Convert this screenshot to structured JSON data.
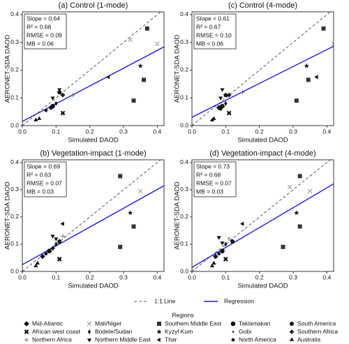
{
  "chart_data": [
    {
      "type": "scatter",
      "title": "(a) Control (1-mode)",
      "x_label": "Simulated DAOD",
      "y_label": "AERONET-SDA DAOD",
      "xlim": [
        0,
        0.42
      ],
      "ylim": [
        0,
        0.41
      ],
      "xticks": [
        {
          "value": 0,
          "label": "0.0"
        },
        {
          "value": 0.1,
          "label": "0.1"
        },
        {
          "value": 0.2,
          "label": "0.2"
        },
        {
          "value": 0.3,
          "label": "0.3"
        },
        {
          "value": 0.4,
          "label": "0.4"
        }
      ],
      "yticks": [
        {
          "value": 0,
          "label": "0.0"
        },
        {
          "value": 0.1,
          "label": "0.1"
        },
        {
          "value": 0.2,
          "label": "0.2"
        },
        {
          "value": 0.3,
          "label": "0.3"
        },
        {
          "value": 0.4,
          "label": "0.4"
        }
      ],
      "stats": [
        {
          "value": 0.64,
          "label": "Slope = 0.64"
        },
        {
          "value": 0.68,
          "label": "R² = 0.68"
        },
        {
          "value": 0.09,
          "label": "RMSE = 0.09"
        },
        {
          "value": 0.06,
          "label": "MB = 0.06"
        }
      ],
      "regression_intercept": 0.015,
      "x": [
        0.32,
        0.4,
        0.37,
        0.36,
        0.33,
        0.35,
        0.255,
        0.11,
        0.09,
        0.12,
        0.04,
        0.05,
        0.07,
        0.09,
        0.085,
        0.1,
        0.12,
        0.15,
        0.11
      ],
      "y": [
        0.31,
        0.295,
        0.35,
        0.165,
        0.09,
        0.215,
        0.175,
        0.13,
        0.1,
        0.045,
        0.02,
        0.025,
        0.055,
        0.07,
        0.065,
        0.08,
        0.11,
        0.11,
        0.12
      ],
      "region": [
        3,
        3,
        6,
        6,
        6,
        7,
        8,
        5,
        5,
        1,
        14,
        14,
        11,
        9,
        0,
        4,
        13,
        2,
        12
      ]
    },
    {
      "type": "scatter",
      "title": "(c) Control (4-mode)",
      "x_label": "Simulated DAOD",
      "y_label": "AERONET-SDA DAOD",
      "xlim": [
        0,
        0.42
      ],
      "ylim": [
        0,
        0.41
      ],
      "xticks": [
        {
          "value": 0,
          "label": "0.0"
        },
        {
          "value": 0.1,
          "label": "0.1"
        },
        {
          "value": 0.2,
          "label": "0.2"
        },
        {
          "value": 0.3,
          "label": "0.3"
        },
        {
          "value": 0.4,
          "label": "0.4"
        }
      ],
      "yticks": [
        {
          "value": 0,
          "label": "0.0"
        },
        {
          "value": 0.1,
          "label": "0.1"
        },
        {
          "value": 0.2,
          "label": "0.2"
        },
        {
          "value": 0.3,
          "label": "0.3"
        },
        {
          "value": 0.4,
          "label": "0.4"
        }
      ],
      "stats": [
        {
          "value": 0.61,
          "label": "Slope = 0.61"
        },
        {
          "value": 0.67,
          "label": "R² = 0.67"
        },
        {
          "value": 0.1,
          "label": "RMSE = 0.10"
        },
        {
          "value": 0.06,
          "label": "MB = 0.06"
        }
      ],
      "regression_intercept": 0.03,
      "x": [
        0.42,
        0.39,
        0.345,
        0.31,
        0.34,
        0.37,
        0.09,
        0.085,
        0.11,
        0.06,
        0.065,
        0.085,
        0.09,
        0.08,
        0.1,
        0.11,
        0.15,
        0.1
      ],
      "y": [
        0.295,
        0.35,
        0.165,
        0.09,
        0.215,
        0.175,
        0.13,
        0.1,
        0.045,
        0.02,
        0.025,
        0.06,
        0.07,
        0.065,
        0.08,
        0.11,
        0.12,
        0.11
      ],
      "region": [
        3,
        6,
        6,
        6,
        7,
        8,
        5,
        5,
        1,
        14,
        14,
        11,
        9,
        0,
        4,
        13,
        2,
        12
      ]
    },
    {
      "type": "scatter",
      "title": "(b) Vegetation-impact (1-mode)",
      "x_label": "Simulated DAOD",
      "y_label": "AERONET-SDA DAOD",
      "xlim": [
        0,
        0.42
      ],
      "ylim": [
        0,
        0.41
      ],
      "xticks": [
        {
          "value": 0,
          "label": "0.0"
        },
        {
          "value": 0.1,
          "label": "0.1"
        },
        {
          "value": 0.2,
          "label": "0.2"
        },
        {
          "value": 0.3,
          "label": "0.3"
        },
        {
          "value": 0.4,
          "label": "0.4"
        }
      ],
      "yticks": [
        {
          "value": 0,
          "label": "0.0"
        },
        {
          "value": 0.1,
          "label": "0.1"
        },
        {
          "value": 0.2,
          "label": "0.2"
        },
        {
          "value": 0.3,
          "label": "0.3"
        },
        {
          "value": 0.4,
          "label": "0.4"
        }
      ],
      "stats": [
        {
          "value": 0.69,
          "label": "Slope = 0.69"
        },
        {
          "value": 0.63,
          "label": "R² = 0.63"
        },
        {
          "value": 0.07,
          "label": "RMSE = 0.07"
        },
        {
          "value": 0.03,
          "label": "MB = 0.03"
        }
      ],
      "regression_intercept": 0.025,
      "x": [
        0.35,
        0.29,
        0.33,
        0.29,
        0.32,
        0.12,
        0.09,
        0.1,
        0.11,
        0.04,
        0.045,
        0.07,
        0.08,
        0.06,
        0.1,
        0.12,
        0.11,
        0.09
      ],
      "y": [
        0.295,
        0.35,
        0.165,
        0.09,
        0.215,
        0.175,
        0.13,
        0.12,
        0.045,
        0.02,
        0.03,
        0.065,
        0.075,
        0.055,
        0.1,
        0.13,
        0.11,
        0.085
      ],
      "region": [
        3,
        6,
        6,
        6,
        7,
        8,
        5,
        5,
        1,
        14,
        14,
        11,
        9,
        0,
        4,
        2,
        12,
        13
      ]
    },
    {
      "type": "scatter",
      "title": "(d) Vegetation-impact (4-mode)",
      "x_label": "Simulated DAOD",
      "y_label": "AERONET-SDA DAOD",
      "xlim": [
        0,
        0.42
      ],
      "ylim": [
        0,
        0.41
      ],
      "xticks": [
        {
          "value": 0,
          "label": "0.0"
        },
        {
          "value": 0.1,
          "label": "0.1"
        },
        {
          "value": 0.2,
          "label": "0.2"
        },
        {
          "value": 0.3,
          "label": "0.3"
        },
        {
          "value": 0.4,
          "label": "0.4"
        }
      ],
      "yticks": [
        {
          "value": 0,
          "label": "0.0"
        },
        {
          "value": 0.1,
          "label": "0.1"
        },
        {
          "value": 0.2,
          "label": "0.2"
        },
        {
          "value": 0.3,
          "label": "0.3"
        },
        {
          "value": 0.4,
          "label": "0.4"
        }
      ],
      "stats": [
        {
          "value": 0.73,
          "label": "Slope = 0.73"
        },
        {
          "value": 0.68,
          "label": "R² = 0.68"
        },
        {
          "value": 0.07,
          "label": "RMSE = 0.07"
        },
        {
          "value": 0.03,
          "label": "MB = 0.03"
        }
      ],
      "regression_intercept": 0.015,
      "x": [
        0.29,
        0.35,
        0.32,
        0.32,
        0.27,
        0.31,
        0.15,
        0.08,
        0.09,
        0.1,
        0.06,
        0.065,
        0.08,
        0.09,
        0.07,
        0.1,
        0.11,
        0.12
      ],
      "y": [
        0.31,
        0.295,
        0.35,
        0.165,
        0.09,
        0.215,
        0.175,
        0.125,
        0.105,
        0.045,
        0.02,
        0.03,
        0.065,
        0.075,
        0.055,
        0.1,
        0.12,
        0.11
      ],
      "region": [
        3,
        3,
        6,
        6,
        6,
        7,
        8,
        5,
        5,
        1,
        14,
        14,
        11,
        9,
        0,
        4,
        2,
        12
      ]
    }
  ],
  "legend": {
    "lines": [
      {
        "name": "1:1 Line",
        "color": "#555555",
        "dashed": true
      },
      {
        "name": "Regression",
        "color": "#1a1aee",
        "dashed": false
      }
    ],
    "title": "Regions",
    "items": [
      {
        "name": "Mid-Atlantic",
        "shape": "diamond",
        "color": "#111111"
      },
      {
        "name": "African west coast",
        "shape": "xbold",
        "color": "#111111"
      },
      {
        "name": "Northern Africa",
        "shape": "plus",
        "color": "#666666"
      },
      {
        "name": "Mali/Niger",
        "shape": "x",
        "color": "#999999"
      },
      {
        "name": "Bodele/Sudan",
        "shape": "diamond-small",
        "color": "#111111"
      },
      {
        "name": "Northern Middle East",
        "shape": "tri-down",
        "color": "#111111"
      },
      {
        "name": "Southern Middle East",
        "shape": "square",
        "color": "#333333"
      },
      {
        "name": "Kyzyl Kum",
        "shape": "star",
        "color": "#111111"
      },
      {
        "name": "Thar",
        "shape": "tri-left",
        "color": "#111111"
      },
      {
        "name": "Taklamakan",
        "shape": "circle",
        "color": "#111111"
      },
      {
        "name": "Gobi",
        "shape": "dot",
        "color": "#111111"
      },
      {
        "name": "North America",
        "shape": "circle-small",
        "color": "#111111"
      },
      {
        "name": "South America",
        "shape": "pentagon",
        "color": "#111111"
      },
      {
        "name": "Southern Africa",
        "shape": "plus-bold",
        "color": "#111111"
      },
      {
        "name": "Australia",
        "shape": "tri-up",
        "color": "#111111"
      }
    ]
  }
}
